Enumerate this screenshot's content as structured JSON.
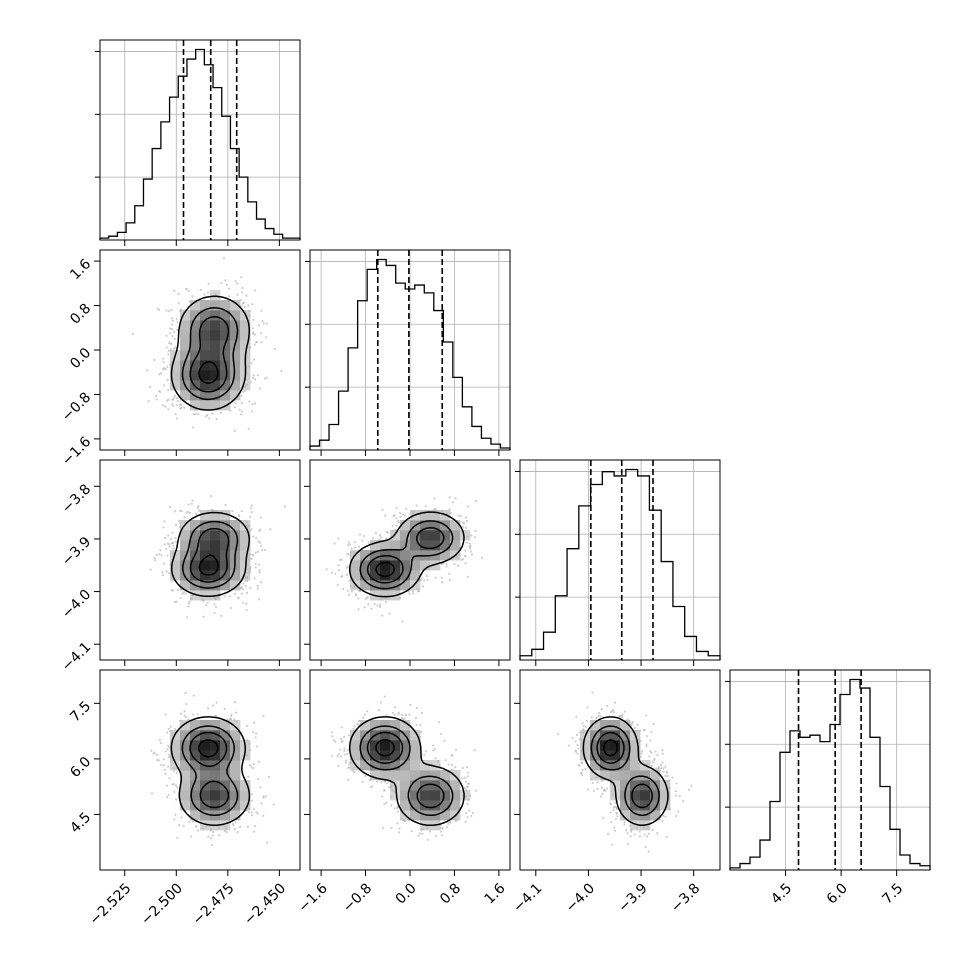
{
  "chart_data": {
    "type": "corner",
    "parameters": [
      {
        "range": [
          -2.537,
          -2.44
        ],
        "ticks": [
          -2.525,
          -2.5,
          -2.475,
          -2.45
        ],
        "tick_labels": [
          "−2.525",
          "−2.500",
          "−2.475",
          "−2.450"
        ],
        "quantiles": [
          -2.4965,
          -2.4833,
          -2.4707
        ]
      },
      {
        "range": [
          -1.8,
          1.8
        ],
        "ticks": [
          -1.6,
          -0.8,
          0.0,
          0.8,
          1.6
        ],
        "tick_labels": [
          "−1.6",
          "−0.8",
          "0.0",
          "0.8",
          "1.6"
        ],
        "quantiles": [
          -0.58,
          -0.02,
          0.58
        ]
      },
      {
        "range": [
          -4.13,
          -3.75
        ],
        "ticks": [
          -4.1,
          -4.0,
          -3.9,
          -3.8
        ],
        "tick_labels": [
          "−4.1",
          "−4.0",
          "−3.9",
          "−3.8"
        ],
        "quantiles": [
          -3.9954,
          -3.9367,
          -3.8773
        ]
      },
      {
        "range": [
          3.0,
          8.4
        ],
        "ticks": [
          4.5,
          6.0,
          7.5
        ],
        "tick_labels": [
          "4.5",
          "6.0",
          "7.5"
        ],
        "quantiles": [
          4.85,
          5.84,
          6.54
        ]
      }
    ],
    "histograms": [
      [
        1,
        2,
        4,
        9,
        18,
        32,
        48,
        62,
        75,
        86,
        95,
        100,
        92,
        80,
        65,
        48,
        33,
        20,
        11,
        6,
        3,
        1,
        1
      ],
      [
        2,
        5,
        13,
        30,
        52,
        76,
        92,
        97,
        94,
        85,
        82,
        84,
        80,
        71,
        55,
        37,
        22,
        12,
        6,
        3,
        1
      ],
      [
        2,
        5,
        13,
        30,
        52,
        72,
        82,
        88,
        86,
        89,
        86,
        70,
        46,
        25,
        11,
        4,
        2
      ],
      [
        1,
        3,
        6,
        14,
        32,
        55,
        65,
        62,
        63,
        60,
        68,
        82,
        89,
        85,
        62,
        39,
        19,
        7,
        3,
        2
      ]
    ],
    "components": [
      {
        "weight": 0.55,
        "mean": [
          -2.4845,
          -0.45,
          -3.958,
          6.3
        ],
        "sd": [
          0.009,
          0.32,
          0.026,
          0.42
        ]
      },
      {
        "weight": 0.45,
        "mean": [
          -2.4815,
          0.37,
          -3.898,
          5.0
        ],
        "sd": [
          0.009,
          0.32,
          0.026,
          0.42
        ]
      }
    ]
  }
}
